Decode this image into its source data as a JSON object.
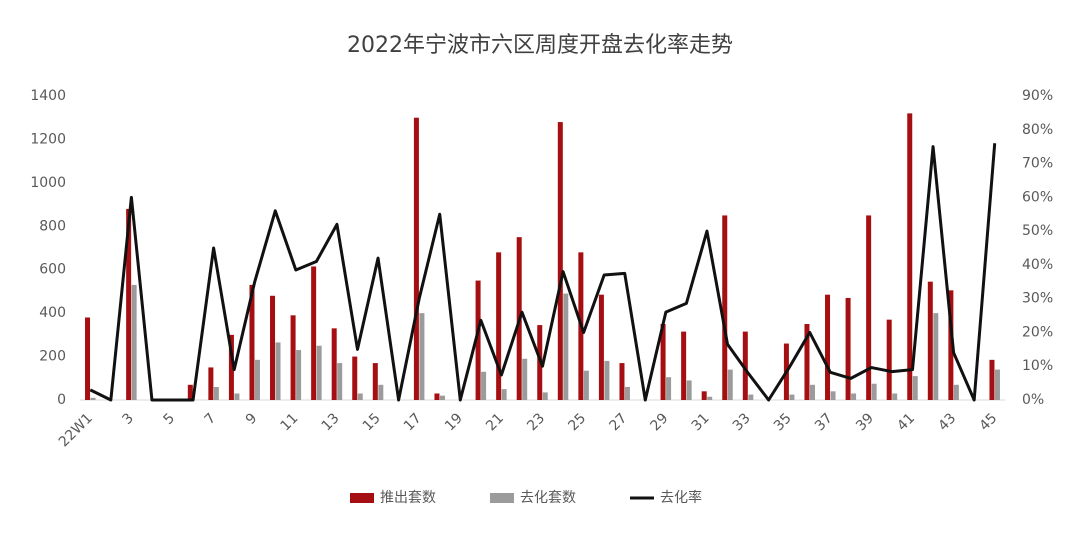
{
  "chart_data": {
    "type": "bar",
    "title": "2022年宁波市六区周度开盘去化率走势",
    "categories": [
      "22W1",
      null,
      "3",
      null,
      "5",
      null,
      "7",
      null,
      "9",
      null,
      "11",
      null,
      "13",
      null,
      "15",
      null,
      "17",
      null,
      "19",
      null,
      "21",
      null,
      "23",
      null,
      "25",
      null,
      "27",
      null,
      "29",
      null,
      "31",
      null,
      "33",
      null,
      "35",
      null,
      "37",
      null,
      "39",
      null,
      "41",
      null,
      "43",
      null,
      "45"
    ],
    "series": [
      {
        "name": "推出套数",
        "type": "bar",
        "color": "#a50f12",
        "values": [
          380,
          0,
          880,
          0,
          0,
          70,
          150,
          300,
          530,
          480,
          390,
          615,
          330,
          200,
          170,
          0,
          1300,
          30,
          0,
          550,
          680,
          750,
          345,
          1280,
          680,
          485,
          170,
          0,
          350,
          315,
          40,
          850,
          315,
          0,
          260,
          350,
          485,
          470,
          850,
          370,
          1320,
          545,
          505,
          0,
          185
        ]
      },
      {
        "name": "去化套数",
        "type": "bar",
        "color": "#9b9b9b",
        "values": [
          10,
          0,
          530,
          0,
          0,
          0,
          60,
          30,
          185,
          265,
          230,
          250,
          170,
          30,
          70,
          0,
          400,
          20,
          0,
          130,
          50,
          190,
          35,
          490,
          135,
          180,
          60,
          0,
          105,
          90,
          15,
          140,
          25,
          0,
          25,
          70,
          40,
          30,
          75,
          30,
          110,
          400,
          70,
          0,
          140
        ]
      },
      {
        "name": "去化率",
        "type": "line",
        "axis": "y2",
        "color": "#111111",
        "values": [
          3,
          0,
          60,
          0,
          0,
          0,
          45,
          9,
          35,
          56,
          38.5,
          41,
          52,
          15,
          42,
          0,
          30,
          55,
          0,
          23.6,
          7.4,
          26,
          10,
          38,
          20,
          37,
          37.5,
          0,
          26,
          28.6,
          50,
          16.5,
          8,
          0,
          9.6,
          20,
          8.2,
          6.4,
          9.6,
          8.4,
          9,
          75,
          14,
          0,
          76
        ]
      }
    ],
    "ylim": [
      0,
      1400
    ],
    "yticks": [
      0,
      200,
      400,
      600,
      800,
      1000,
      1200,
      1400
    ],
    "y2lim": [
      0,
      90
    ],
    "y2ticks": [
      {
        "value": 0,
        "label": "0%"
      },
      {
        "value": 10,
        "label": "10%"
      },
      {
        "value": 20,
        "label": "20%"
      },
      {
        "value": 30,
        "label": "30%"
      },
      {
        "value": 40,
        "label": "40%"
      },
      {
        "value": 50,
        "label": "50%"
      },
      {
        "value": 60,
        "label": "60%"
      },
      {
        "value": 70,
        "label": "70%"
      },
      {
        "value": 80,
        "label": "80%"
      },
      {
        "value": 90,
        "label": "90%"
      }
    ],
    "legend": "bottom"
  }
}
